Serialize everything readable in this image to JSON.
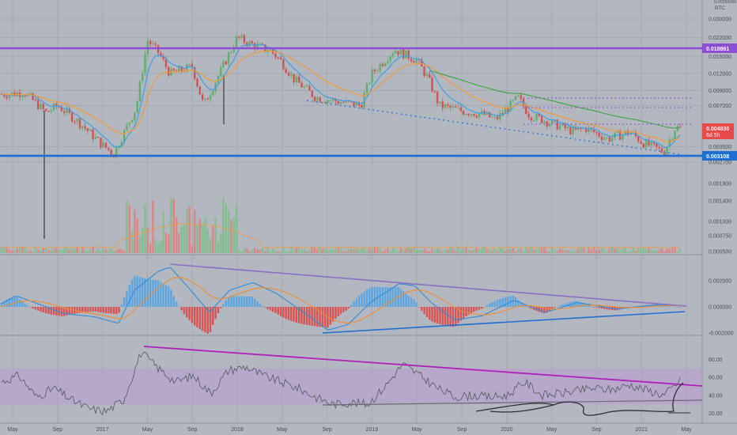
{
  "chart_data": {
    "type": "line",
    "title": "",
    "colors": {
      "background": "#b3b7bf",
      "grid": "#a4a8b0",
      "axis_text": "#4a4d55",
      "candle_up": "#5fae6e",
      "candle_down": "#d2524f",
      "ema_fast": "#3ea0e6",
      "ema_mid": "#f29a38",
      "ema_slow": "#3fa84a",
      "support": "#1e6fd0",
      "resistance": "#8b4fd6",
      "trend_dotted": "#3c7fd8",
      "macd_line": "#2f8bd8",
      "macd_signal": "#f28c30",
      "macd_hist_pos": "#4aa3e8",
      "macd_hist_neg": "#e0413e",
      "rsi_line": "#555860",
      "rsi_band": "#b99bd6",
      "rsi_trend": "#b020b8",
      "current_price": "#e84a4a"
    },
    "x_axis": {
      "labels": [
        "May",
        "Sep",
        "2017",
        "May",
        "Sep",
        "2018",
        "May",
        "Sep",
        "2019",
        "May",
        "Sep",
        "2020",
        "May",
        "Sep",
        "2021",
        "May"
      ]
    },
    "price_axis": {
      "unit": "BTC",
      "ticks": [
        "0.030000",
        "0.022000",
        "0.016000",
        "0.012000",
        "0.009000",
        "0.007000",
        "0.003500",
        "0.002700"
      ],
      "current_price_label": "0.004830",
      "countdown_label": "6d 5h",
      "resistance_label": "0.018861",
      "support_label": "0.003108",
      "top_label": "0.0000000"
    },
    "price_series": {
      "dates": [
        "2016-05",
        "2016-06",
        "2016-08",
        "2016-09",
        "2016-11",
        "2017-01",
        "2017-02",
        "2017-04",
        "2017-05",
        "2017-06",
        "2017-07",
        "2017-09",
        "2017-10",
        "2017-12",
        "2018-01",
        "2018-02",
        "2018-04",
        "2018-05",
        "2018-06",
        "2018-08",
        "2018-10",
        "2018-12",
        "2019-01",
        "2019-03",
        "2019-05",
        "2019-06",
        "2019-07",
        "2019-09",
        "2019-11",
        "2019-12",
        "2020-02",
        "2020-03",
        "2020-05",
        "2020-07",
        "2020-08",
        "2020-10",
        "2020-12",
        "2021-01",
        "2021-03",
        "2021-04"
      ],
      "close": [
        0.0085,
        0.0088,
        0.0062,
        0.007,
        0.0052,
        0.0036,
        0.0031,
        0.0068,
        0.021,
        0.017,
        0.012,
        0.0135,
        0.007,
        0.015,
        0.022,
        0.02,
        0.0175,
        0.0145,
        0.011,
        0.008,
        0.0075,
        0.007,
        0.012,
        0.018,
        0.015,
        0.011,
        0.007,
        0.0064,
        0.006,
        0.0055,
        0.008,
        0.006,
        0.0052,
        0.0045,
        0.0048,
        0.004,
        0.0045,
        0.0038,
        0.0032,
        0.0048
      ]
    },
    "volume_axis": {
      "ticks": [
        "0.001900",
        "0.001400",
        "0.001000",
        "0.000750",
        "0.000500"
      ]
    },
    "macd": {
      "ticks": [
        "0.002000",
        "0.000000",
        "-0.002000"
      ]
    },
    "rsi": {
      "ticks": [
        "80.00",
        "60.00",
        "40.00",
        "20.00"
      ],
      "overbought": 70,
      "oversold": 30,
      "values": [
        55,
        62,
        38,
        48,
        35,
        25,
        22,
        35,
        88,
        70,
        55,
        62,
        42,
        68,
        72,
        62,
        55,
        48,
        38,
        30,
        32,
        30,
        50,
        75,
        62,
        48,
        38,
        40,
        38,
        40,
        55,
        40,
        42,
        45,
        48,
        46,
        52,
        46,
        40,
        58
      ]
    }
  }
}
